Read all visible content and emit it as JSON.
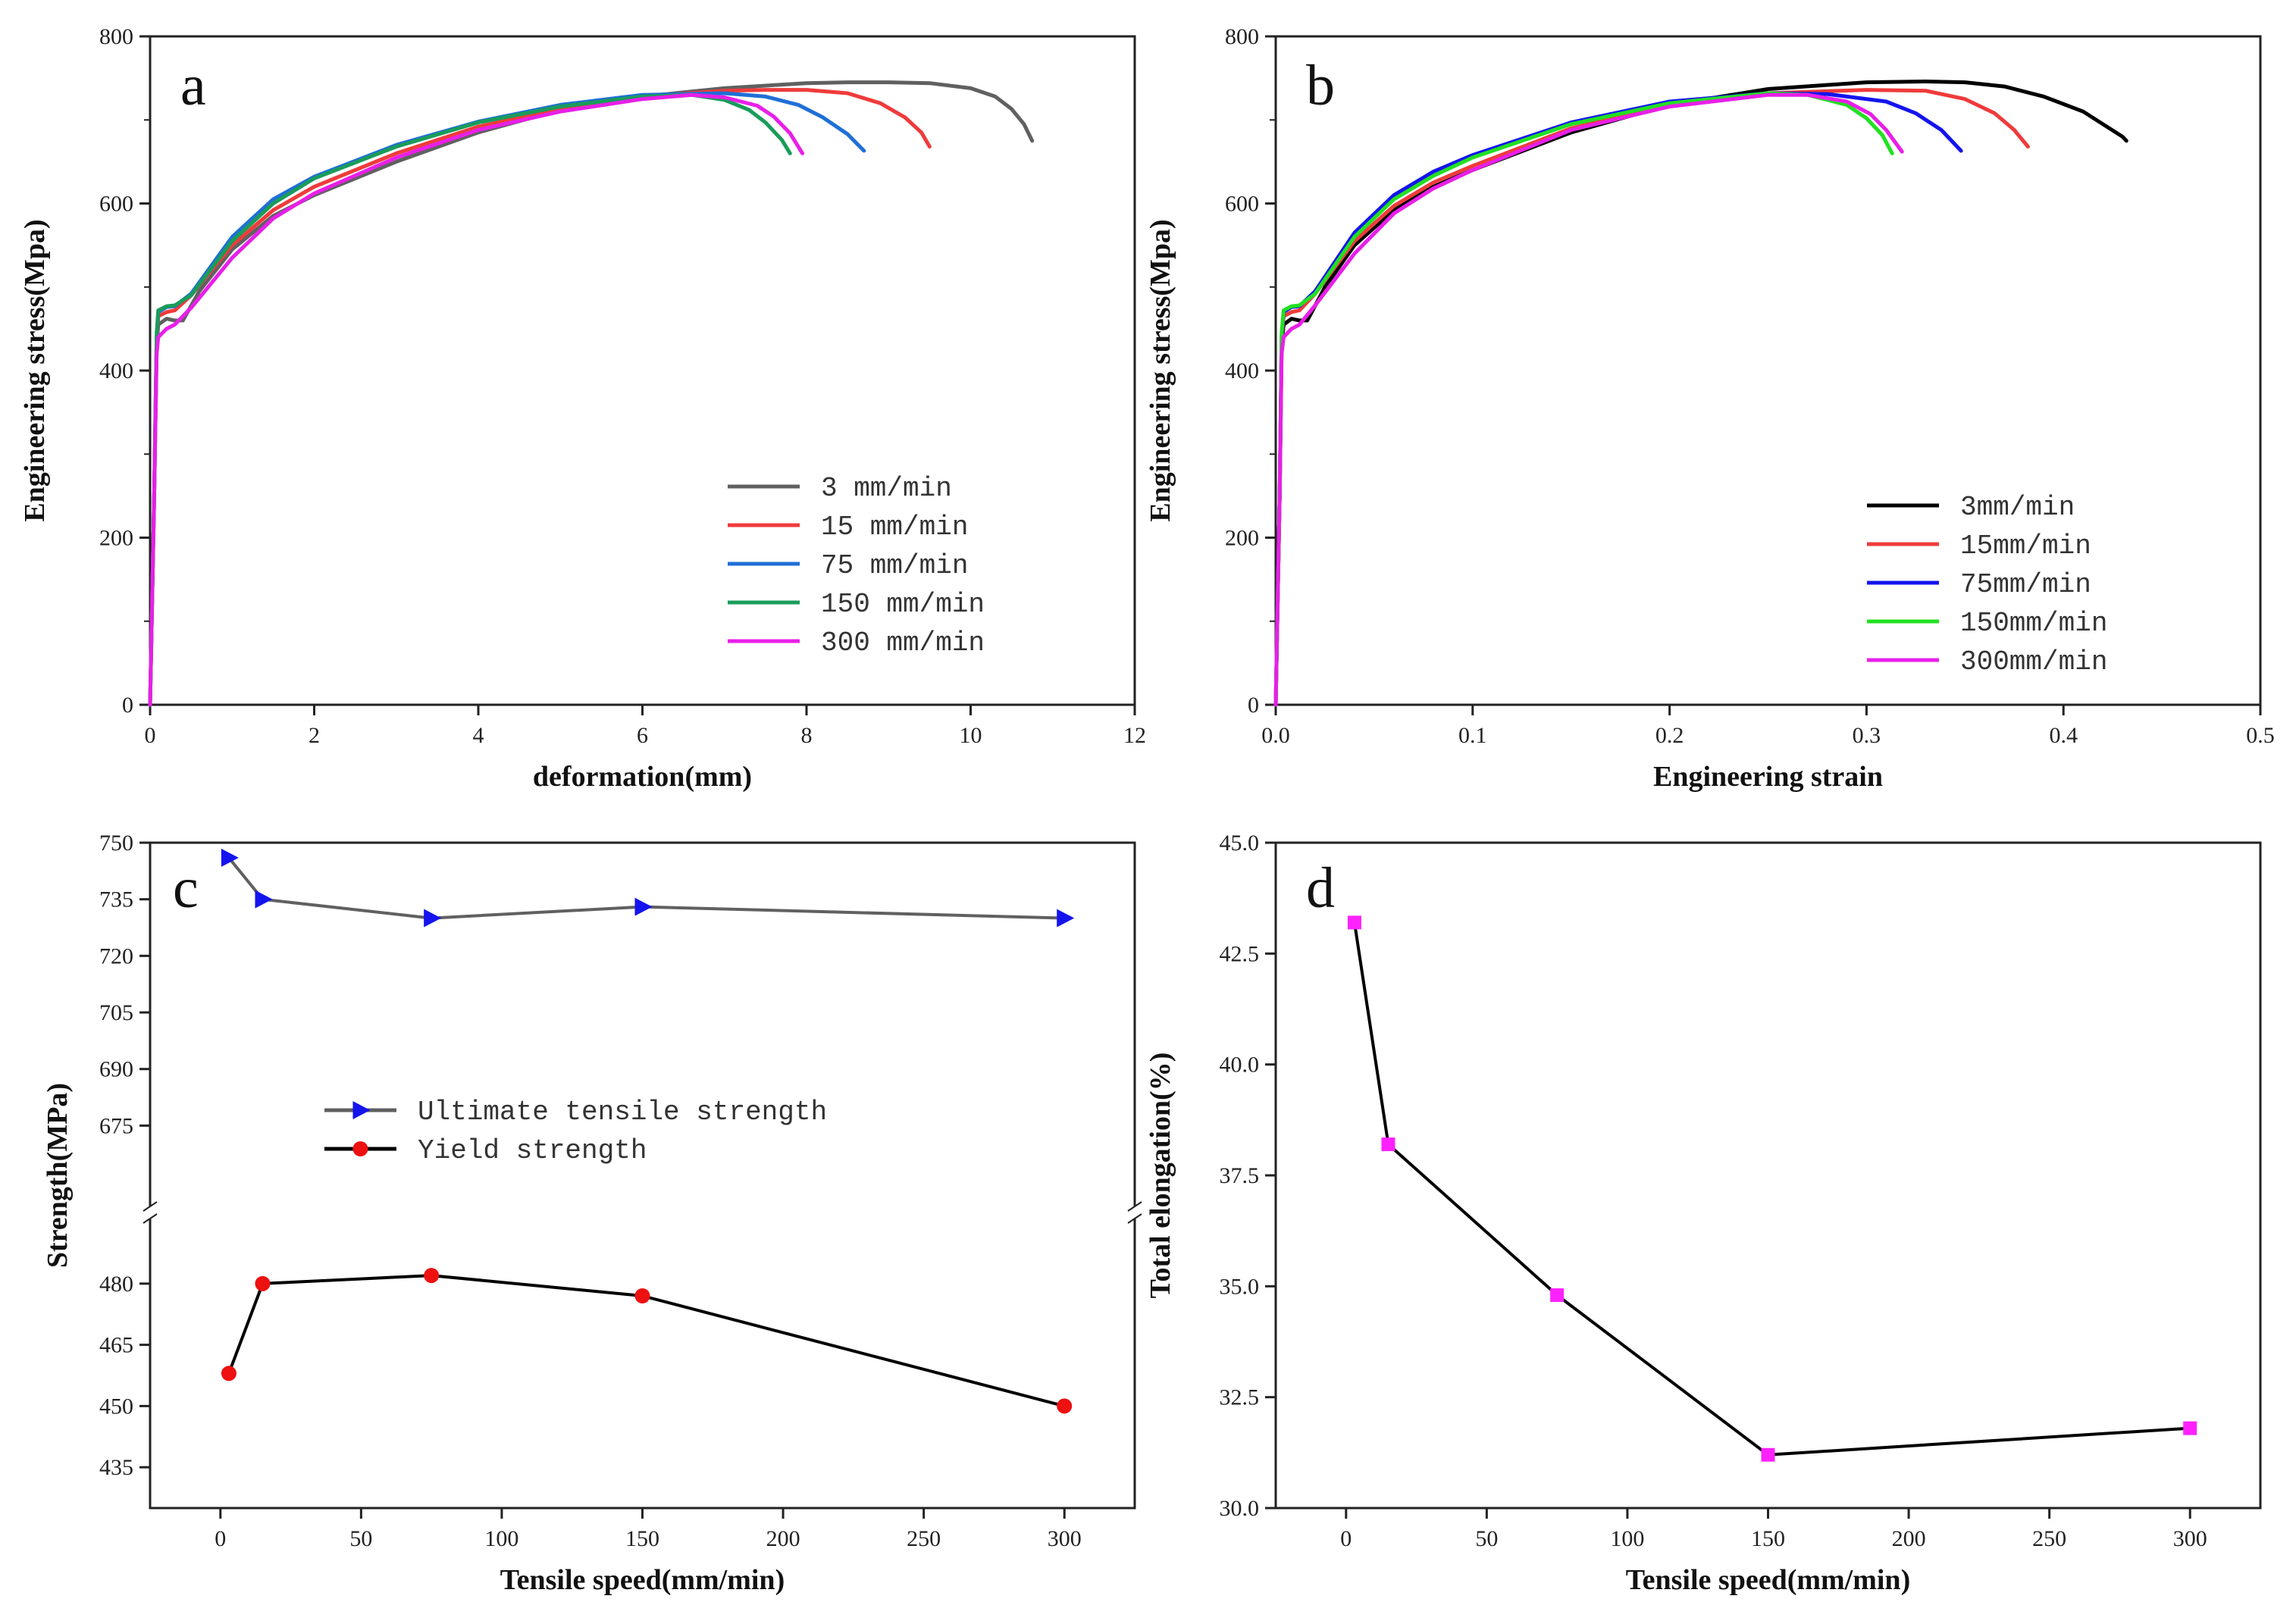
{
  "chart_data": [
    {
      "id": "a",
      "panel_label": "a",
      "type": "line",
      "xlabel": "deformation(mm)",
      "ylabel": "Engineering stress(Mpa)",
      "xlim": [
        0,
        12
      ],
      "ylim": [
        0,
        800
      ],
      "xticks": [
        0,
        2,
        4,
        6,
        8,
        10,
        12
      ],
      "yticks": [
        0,
        200,
        400,
        600,
        800
      ],
      "legend_position": "lower-right",
      "series": [
        {
          "name": "3    mm/min",
          "color": "#606060",
          "x": [
            0,
            0.05,
            0.08,
            0.1,
            0.2,
            0.3,
            0.4,
            0.6,
            1,
            1.5,
            2,
            3,
            4,
            5,
            6,
            7,
            8,
            8.5,
            9,
            9.5,
            10,
            10.3,
            10.5,
            10.65,
            10.75
          ],
          "y": [
            0,
            250,
            430,
            455,
            462,
            460,
            460,
            495,
            545,
            585,
            610,
            650,
            685,
            712,
            728,
            738,
            744,
            745,
            745,
            744,
            738,
            728,
            713,
            695,
            675
          ]
        },
        {
          "name": "15   mm/min",
          "color": "#ef3b3b",
          "x": [
            0,
            0.05,
            0.08,
            0.1,
            0.2,
            0.3,
            0.5,
            1,
            1.5,
            2,
            3,
            4,
            5,
            6,
            7,
            7.5,
            8,
            8.5,
            8.9,
            9.2,
            9.4,
            9.5
          ],
          "y": [
            0,
            250,
            435,
            465,
            470,
            472,
            490,
            550,
            592,
            620,
            660,
            692,
            713,
            728,
            735,
            736,
            736,
            732,
            720,
            703,
            685,
            668
          ]
        },
        {
          "name": "75   mm/min",
          "color": "#1f6fd6",
          "x": [
            0,
            0.05,
            0.08,
            0.1,
            0.2,
            0.3,
            0.5,
            1,
            1.5,
            2,
            3,
            4,
            5,
            6,
            7,
            7.5,
            7.9,
            8.2,
            8.5,
            8.7
          ],
          "y": [
            0,
            250,
            440,
            470,
            476,
            477,
            492,
            560,
            605,
            632,
            670,
            698,
            718,
            730,
            732,
            728,
            718,
            703,
            683,
            663
          ]
        },
        {
          "name": "150  mm/min",
          "color": "#1a9c5a",
          "x": [
            0,
            0.05,
            0.08,
            0.1,
            0.2,
            0.3,
            0.5,
            1,
            1.5,
            2,
            3,
            4,
            5,
            6,
            6.6,
            7,
            7.3,
            7.5,
            7.7,
            7.8
          ],
          "y": [
            0,
            250,
            445,
            472,
            477,
            478,
            490,
            555,
            600,
            630,
            668,
            697,
            716,
            728,
            730,
            724,
            712,
            697,
            676,
            660
          ]
        },
        {
          "name": "300  mm/min",
          "color": "#e81fe8",
          "x": [
            0,
            0.05,
            0.08,
            0.1,
            0.2,
            0.3,
            0.5,
            1,
            1.5,
            2,
            3,
            4,
            5,
            6,
            6.6,
            7,
            7.4,
            7.6,
            7.8,
            7.95
          ],
          "y": [
            0,
            250,
            420,
            440,
            450,
            455,
            475,
            535,
            582,
            612,
            655,
            688,
            710,
            725,
            730,
            727,
            717,
            704,
            684,
            660
          ]
        }
      ]
    },
    {
      "id": "b",
      "panel_label": "b",
      "type": "line",
      "xlabel": "Engineering strain",
      "ylabel": "Engineering stress(Mpa)",
      "xlim": [
        0,
        0.5
      ],
      "ylim": [
        0,
        800
      ],
      "xticks": [
        0.0,
        0.1,
        0.2,
        0.3,
        0.4,
        0.5
      ],
      "xticklabels": [
        "0.0",
        "0.1",
        "0.2",
        "0.3",
        "0.4",
        "0.5"
      ],
      "yticks": [
        0,
        200,
        400,
        600,
        800
      ],
      "legend_position": "lower-right",
      "series": [
        {
          "name": "3mm/min",
          "color": "#000000",
          "x": [
            0,
            0.002,
            0.003,
            0.004,
            0.008,
            0.012,
            0.016,
            0.025,
            0.04,
            0.06,
            0.08,
            0.1,
            0.15,
            0.2,
            0.25,
            0.3,
            0.33,
            0.35,
            0.37,
            0.39,
            0.41,
            0.42,
            0.43,
            0.432
          ],
          "y": [
            0,
            250,
            430,
            455,
            462,
            460,
            460,
            500,
            550,
            592,
            620,
            640,
            685,
            718,
            737,
            745,
            746,
            745,
            740,
            728,
            710,
            695,
            680,
            675
          ]
        },
        {
          "name": "15mm/min",
          "color": "#ef3b3b",
          "x": [
            0,
            0.002,
            0.003,
            0.004,
            0.008,
            0.012,
            0.02,
            0.04,
            0.06,
            0.08,
            0.1,
            0.15,
            0.2,
            0.25,
            0.3,
            0.33,
            0.35,
            0.365,
            0.375,
            0.382
          ],
          "y": [
            0,
            250,
            435,
            465,
            470,
            472,
            492,
            555,
            597,
            625,
            645,
            690,
            718,
            732,
            736,
            735,
            725,
            708,
            688,
            668
          ]
        },
        {
          "name": "75mm/min",
          "color": "#1414ee",
          "x": [
            0,
            0.002,
            0.003,
            0.004,
            0.008,
            0.012,
            0.02,
            0.04,
            0.06,
            0.08,
            0.1,
            0.15,
            0.2,
            0.25,
            0.28,
            0.31,
            0.325,
            0.338,
            0.348
          ],
          "y": [
            0,
            250,
            440,
            470,
            476,
            477,
            495,
            565,
            610,
            638,
            658,
            697,
            722,
            732,
            731,
            722,
            708,
            688,
            663
          ]
        },
        {
          "name": "150mm/min",
          "color": "#22e022",
          "x": [
            0,
            0.002,
            0.003,
            0.004,
            0.008,
            0.012,
            0.02,
            0.04,
            0.06,
            0.08,
            0.1,
            0.15,
            0.2,
            0.25,
            0.27,
            0.29,
            0.3,
            0.308,
            0.313
          ],
          "y": [
            0,
            250,
            445,
            472,
            477,
            478,
            492,
            560,
            605,
            633,
            655,
            695,
            720,
            732,
            730,
            718,
            702,
            682,
            660
          ]
        },
        {
          "name": "300mm/min",
          "color": "#e81fe8",
          "x": [
            0,
            0.002,
            0.003,
            0.004,
            0.008,
            0.012,
            0.02,
            0.04,
            0.06,
            0.08,
            0.1,
            0.15,
            0.2,
            0.25,
            0.27,
            0.29,
            0.302,
            0.31,
            0.318
          ],
          "y": [
            0,
            250,
            420,
            440,
            450,
            455,
            478,
            540,
            588,
            618,
            640,
            688,
            716,
            730,
            730,
            722,
            707,
            688,
            662
          ]
        }
      ]
    },
    {
      "id": "c",
      "panel_label": "c",
      "type": "line",
      "xlabel": "Tensile speed(mm/min)",
      "ylabel": "Strength(MPa)",
      "xlim": [
        -25,
        325
      ],
      "xticks": [
        0,
        50,
        100,
        150,
        200,
        250,
        300
      ],
      "broken_y_axis": true,
      "ylim_upper": [
        660,
        750
      ],
      "ylim_lower": [
        425,
        490
      ],
      "yticks_upper": [
        675,
        690,
        705,
        720,
        735,
        750
      ],
      "yticks_lower": [
        435,
        450,
        465,
        480
      ],
      "legend_position": "center-left",
      "series": [
        {
          "name": "Ultimate tensile strength",
          "color": "#606060",
          "marker_color": "#1414ee",
          "marker": "triangle-right",
          "x": [
            3,
            15,
            75,
            150,
            300
          ],
          "y": [
            746,
            735,
            730,
            733,
            730
          ]
        },
        {
          "name": "Yield strength",
          "color": "#000000",
          "marker_color": "#ee1111",
          "marker": "circle",
          "x": [
            3,
            15,
            75,
            150,
            300
          ],
          "y": [
            458,
            480,
            482,
            477,
            450
          ]
        }
      ]
    },
    {
      "id": "d",
      "panel_label": "d",
      "type": "line",
      "xlabel": "Tensile speed(mm/min)",
      "ylabel": "Total elongation(%)",
      "xlim": [
        -25,
        325
      ],
      "ylim": [
        30,
        45
      ],
      "xticks": [
        0,
        50,
        100,
        150,
        200,
        250,
        300
      ],
      "yticks": [
        30,
        32.5,
        35,
        37.5,
        40,
        42.5,
        45
      ],
      "yticklabels": [
        "30.0",
        "32.5",
        "35.0",
        "37.5",
        "40.0",
        "42.5",
        "45.0"
      ],
      "series": [
        {
          "color": "#000000",
          "marker_color": "#ff22ff",
          "marker": "square",
          "x": [
            3,
            15,
            75,
            150,
            300
          ],
          "y": [
            43.2,
            38.2,
            34.8,
            31.2,
            31.8
          ]
        }
      ]
    }
  ]
}
